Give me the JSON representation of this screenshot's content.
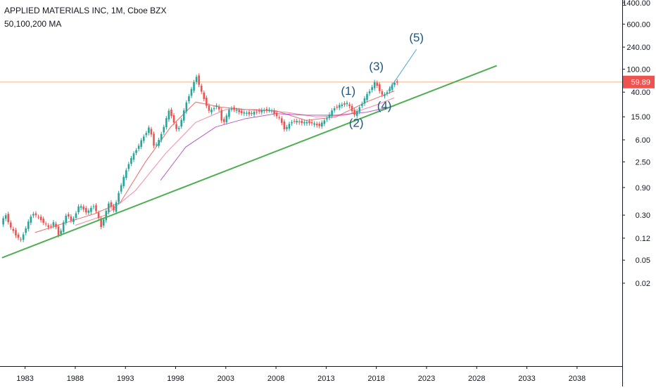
{
  "header": {
    "title": "APPLIED MATERIALS INC, 1M, Cboe BZX",
    "indicator": "50,100,200 MA"
  },
  "colors": {
    "bull_candle": "#26a69a",
    "bear_candle": "#ef5350",
    "trendline": "#4caf50",
    "wave_label": "#1e5582",
    "wave_projection": "#4fa8e0",
    "ma_50": "#e53935",
    "ma_100": "#f06292",
    "ma_200": "#9c27b0",
    "price_line": "#f6b58d",
    "price_tag": "#ef5350",
    "axis_text": "#131722",
    "axis_line": "#131722"
  },
  "chart_data": {
    "type": "candlestick",
    "title": "APPLIED MATERIALS INC, 1M, Cboe BZX",
    "y_scale": "log",
    "y_ticks": [
      "1400.00",
      "600.00",
      "240.00",
      "100.00",
      "40.00",
      "15.00",
      "6.00",
      "2.50",
      "0.90",
      "0.30",
      "0.12",
      "0.05",
      "0.02"
    ],
    "x_ticks": [
      "1983",
      "1988",
      "1993",
      "1998",
      "2003",
      "2008",
      "2013",
      "2018",
      "2023",
      "2028",
      "2033",
      "2038"
    ],
    "x_range": [
      1980.5,
      2042.5
    ],
    "last_price": "59.89",
    "price_path": [
      {
        "x": 1980.7,
        "y": 0.22
      },
      {
        "x": 1981.2,
        "y": 0.3
      },
      {
        "x": 1981.7,
        "y": 0.18
      },
      {
        "x": 1982.3,
        "y": 0.13
      },
      {
        "x": 1982.7,
        "y": 0.11
      },
      {
        "x": 1983.3,
        "y": 0.2
      },
      {
        "x": 1983.9,
        "y": 0.33
      },
      {
        "x": 1984.7,
        "y": 0.25
      },
      {
        "x": 1985.5,
        "y": 0.18
      },
      {
        "x": 1986.0,
        "y": 0.23
      },
      {
        "x": 1986.5,
        "y": 0.13
      },
      {
        "x": 1987.3,
        "y": 0.33
      },
      {
        "x": 1987.8,
        "y": 0.22
      },
      {
        "x": 1988.5,
        "y": 0.45
      },
      {
        "x": 1989.3,
        "y": 0.33
      },
      {
        "x": 1990.0,
        "y": 0.45
      },
      {
        "x": 1990.7,
        "y": 0.19
      },
      {
        "x": 1991.5,
        "y": 0.5
      },
      {
        "x": 1992.0,
        "y": 0.35
      },
      {
        "x": 1992.5,
        "y": 0.8
      },
      {
        "x": 1993.5,
        "y": 2.5
      },
      {
        "x": 1994.5,
        "y": 5.0
      },
      {
        "x": 1995.5,
        "y": 10.0
      },
      {
        "x": 1996.0,
        "y": 4.5
      },
      {
        "x": 1996.5,
        "y": 6.0
      },
      {
        "x": 1997.5,
        "y": 20.0
      },
      {
        "x": 1998.3,
        "y": 8.0
      },
      {
        "x": 1999.3,
        "y": 30.0
      },
      {
        "x": 2000.2,
        "y": 75.0
      },
      {
        "x": 2000.8,
        "y": 35.0
      },
      {
        "x": 2001.5,
        "y": 18.0
      },
      {
        "x": 2002.3,
        "y": 25.0
      },
      {
        "x": 2002.8,
        "y": 11.0
      },
      {
        "x": 2003.6,
        "y": 22.0
      },
      {
        "x": 2004.5,
        "y": 18.0
      },
      {
        "x": 2005.5,
        "y": 17.0
      },
      {
        "x": 2006.5,
        "y": 19.0
      },
      {
        "x": 2007.5,
        "y": 20.0
      },
      {
        "x": 2008.5,
        "y": 14.0
      },
      {
        "x": 2009.0,
        "y": 9.0
      },
      {
        "x": 2009.8,
        "y": 13.0
      },
      {
        "x": 2010.5,
        "y": 12.0
      },
      {
        "x": 2011.5,
        "y": 12.0
      },
      {
        "x": 2012.4,
        "y": 10.5
      },
      {
        "x": 2013.0,
        "y": 13.0
      },
      {
        "x": 2014.0,
        "y": 22.0
      },
      {
        "x": 2015.2,
        "y": 26.0
      },
      {
        "x": 2016.0,
        "y": 16.0
      },
      {
        "x": 2017.0,
        "y": 32.0
      },
      {
        "x": 2018.0,
        "y": 60.0
      },
      {
        "x": 2018.8,
        "y": 33.0
      },
      {
        "x": 2019.5,
        "y": 48.0
      },
      {
        "x": 2020.0,
        "y": 59.89
      }
    ],
    "moving_averages": [
      {
        "name": "50",
        "points": [
          {
            "x": 1984.0,
            "y": 0.15
          },
          {
            "x": 1987.0,
            "y": 0.22
          },
          {
            "x": 1990.0,
            "y": 0.32
          },
          {
            "x": 1992.5,
            "y": 0.5
          },
          {
            "x": 1995.0,
            "y": 2.5
          },
          {
            "x": 1997.5,
            "y": 10.0
          },
          {
            "x": 2000.0,
            "y": 27.0
          },
          {
            "x": 2002.5,
            "y": 22.0
          },
          {
            "x": 2005.0,
            "y": 20.0
          },
          {
            "x": 2008.0,
            "y": 19.0
          },
          {
            "x": 2011.0,
            "y": 13.0
          },
          {
            "x": 2014.0,
            "y": 15.0
          },
          {
            "x": 2017.0,
            "y": 27.0
          },
          {
            "x": 2019.8,
            "y": 42.0
          }
        ]
      },
      {
        "name": "100",
        "points": [
          {
            "x": 1988.0,
            "y": 0.2
          },
          {
            "x": 1991.0,
            "y": 0.3
          },
          {
            "x": 1994.0,
            "y": 0.8
          },
          {
            "x": 1997.0,
            "y": 3.5
          },
          {
            "x": 2000.0,
            "y": 12.0
          },
          {
            "x": 2003.0,
            "y": 20.0
          },
          {
            "x": 2006.0,
            "y": 20.0
          },
          {
            "x": 2009.0,
            "y": 18.0
          },
          {
            "x": 2012.0,
            "y": 15.0
          },
          {
            "x": 2015.0,
            "y": 16.0
          },
          {
            "x": 2018.0,
            "y": 24.0
          },
          {
            "x": 2019.8,
            "y": 32.0
          }
        ]
      },
      {
        "name": "200",
        "points": [
          {
            "x": 1996.5,
            "y": 1.2
          },
          {
            "x": 1999.0,
            "y": 4.5
          },
          {
            "x": 2002.0,
            "y": 10.0
          },
          {
            "x": 2005.0,
            "y": 14.0
          },
          {
            "x": 2008.0,
            "y": 17.0
          },
          {
            "x": 2011.0,
            "y": 16.0
          },
          {
            "x": 2014.0,
            "y": 16.0
          },
          {
            "x": 2017.0,
            "y": 18.0
          },
          {
            "x": 2019.8,
            "y": 23.0
          }
        ]
      }
    ],
    "trendline": {
      "x": [
        1980.7,
        2030.0
      ],
      "y": [
        0.055,
        115.0
      ]
    },
    "wave_projection": {
      "x": [
        2019.3,
        2022.0
      ],
      "y": [
        45.0,
        220.0
      ]
    },
    "wave_labels": [
      {
        "text": "(1)",
        "x": 2015.2,
        "y": 36.0
      },
      {
        "text": "(2)",
        "x": 2016.0,
        "y": 10.0
      },
      {
        "text": "(3)",
        "x": 2018.0,
        "y": 95.0
      },
      {
        "text": "(4)",
        "x": 2018.8,
        "y": 20.0
      },
      {
        "text": "(5)",
        "x": 2022.0,
        "y": 300.0
      }
    ]
  }
}
